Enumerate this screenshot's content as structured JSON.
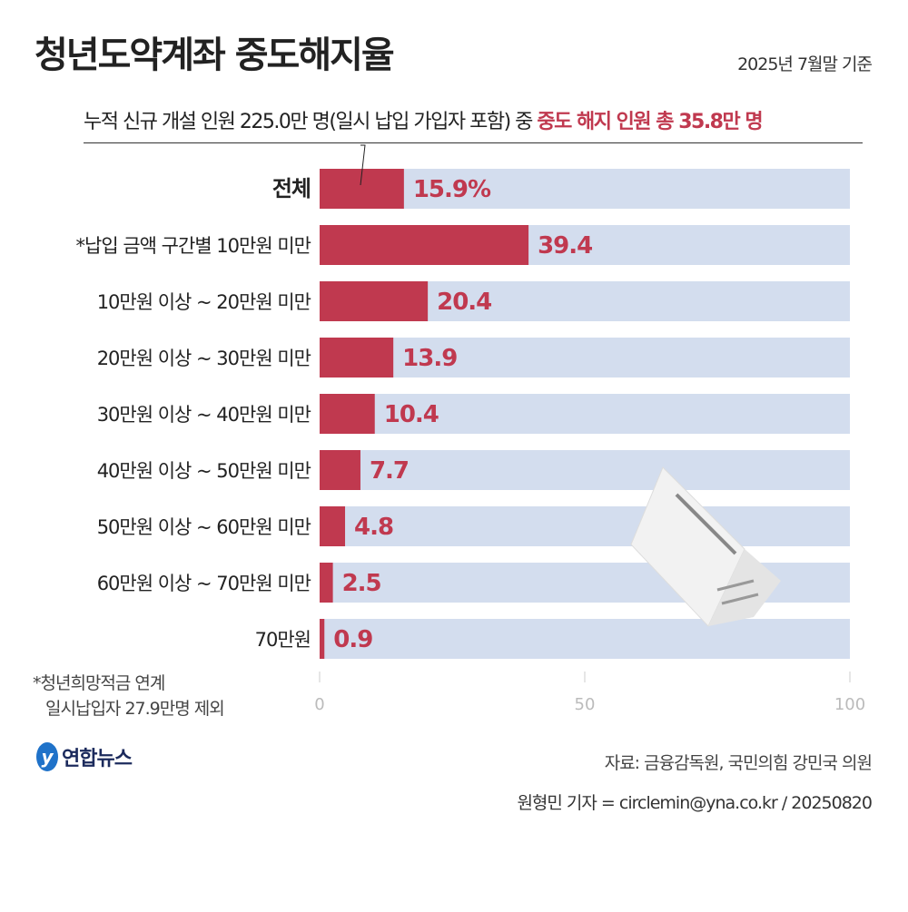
{
  "title": "청년도약계좌 중도해지율",
  "basis": "2025년 7월말 기준",
  "subtitle": {
    "prefix": "누적 신규 개설 인원 225.0만 명(일시 납입 가입자 포함) 중 ",
    "highlight": "중도 해지 인원 총 35.8만 명"
  },
  "footnote": [
    "*청년희망적금 연계",
    "일시납입자 27.9만명 제외"
  ],
  "logo": "연합뉴스",
  "source": "자료: 금융감독원, 국민의힘 강민국 의원",
  "credit": "원형민 기자 = circlemin@yna.co.kr / 20250820",
  "colors": {
    "bar": "#c0394f",
    "track": "#d3ddee",
    "label": "#c0394f"
  },
  "chart_data": {
    "type": "bar",
    "orientation": "horizontal",
    "categories": [
      "전체",
      "*납입 금액 구간별  10만원 미만",
      "10만원 이상 ~ 20만원 미만",
      "20만원 이상 ~ 30만원 미만",
      "30만원 이상 ~ 40만원 미만",
      "40만원 이상 ~ 50만원 미만",
      "50만원 이상 ~ 60만원 미만",
      "60만원 이상 ~ 70만원 미만",
      "70만원"
    ],
    "values": [
      15.9,
      39.4,
      20.4,
      13.9,
      10.4,
      7.7,
      4.8,
      2.5,
      0.9
    ],
    "value_labels": [
      "15.9%",
      "39.4",
      "20.4",
      "13.9",
      "10.4",
      "7.7",
      "4.8",
      "2.5",
      "0.9"
    ],
    "xlim": [
      0,
      100
    ],
    "xticks": [
      "0",
      "50",
      "100"
    ],
    "grid": false
  }
}
